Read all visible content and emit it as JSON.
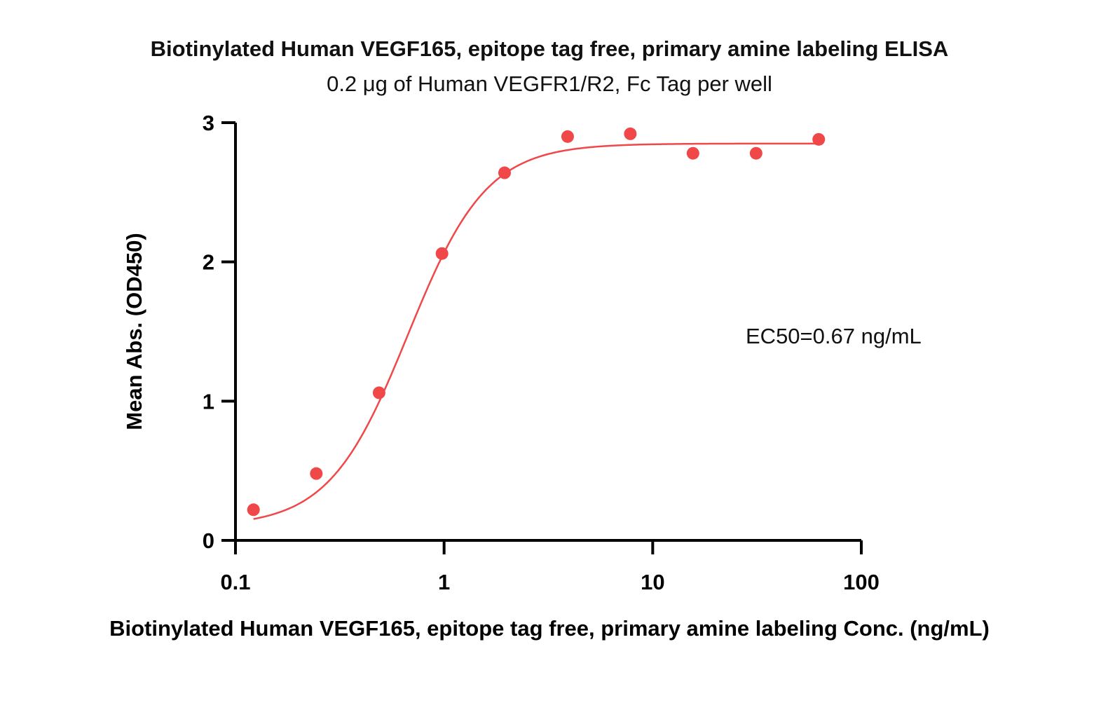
{
  "chart_data": {
    "type": "scatter",
    "title": "Biotinylated Human VEGF165, epitope tag free, primary amine labeling ELISA",
    "subtitle": "0.2 μg of Human VEGFR1/R2, Fc Tag per well",
    "xlabel": "Biotinylated Human VEGF165, epitope tag free, primary amine labeling Conc. (ng/mL)",
    "ylabel": "Mean Abs. (OD450)",
    "x_scale": "log",
    "xlim": [
      0.1,
      100
    ],
    "ylim": [
      0,
      3
    ],
    "x_ticks": [
      0.1,
      1,
      10,
      100
    ],
    "x_tick_labels": [
      "0.1",
      "1",
      "10",
      "100"
    ],
    "y_ticks": [
      0,
      1,
      2,
      3
    ],
    "y_tick_labels": [
      "0",
      "1",
      "2",
      "3"
    ],
    "grid": false,
    "point_color": "#f04848",
    "curve_color": "#f04848",
    "series": [
      {
        "x": [
          0.122,
          0.244,
          0.488,
          0.977,
          1.95,
          3.91,
          7.81,
          15.6,
          31.3,
          62.5
        ],
        "y": [
          0.22,
          0.48,
          1.06,
          2.06,
          2.64,
          2.9,
          2.92,
          2.78,
          2.78,
          2.88
        ]
      }
    ],
    "fit": {
      "model": "4PL",
      "bottom": 0.1,
      "top": 2.85,
      "ec50": 0.67,
      "hill": 2.3
    },
    "annotation": "EC50=0.67 ng/mL"
  }
}
